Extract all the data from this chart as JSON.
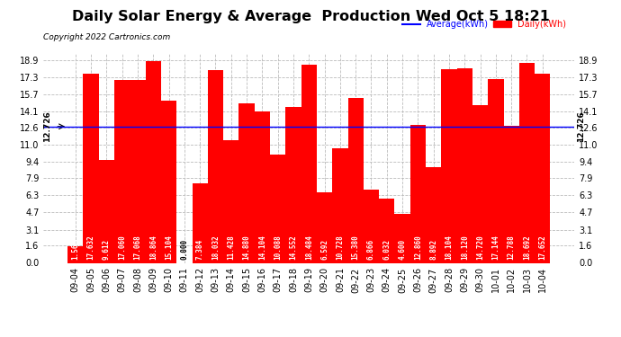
{
  "title": "Daily Solar Energy & Average  Production Wed Oct 5 18:21",
  "copyright": "Copyright 2022 Cartronics.com",
  "legend_average": "Average(kWh)",
  "legend_daily": "Daily(kWh)",
  "average_value": 12.726,
  "average_label": "12.726",
  "categories": [
    "09-04",
    "09-05",
    "09-06",
    "09-07",
    "09-08",
    "09-09",
    "09-10",
    "09-11",
    "09-12",
    "09-13",
    "09-14",
    "09-15",
    "09-16",
    "09-17",
    "09-18",
    "09-19",
    "09-20",
    "09-21",
    "09-22",
    "09-23",
    "09-24",
    "09-25",
    "09-26",
    "09-27",
    "09-28",
    "09-29",
    "09-30",
    "10-01",
    "10-02",
    "10-03",
    "10-04"
  ],
  "values": [
    1.568,
    17.632,
    9.612,
    17.06,
    17.068,
    18.864,
    15.104,
    0.0,
    7.384,
    18.032,
    11.428,
    14.88,
    14.104,
    10.088,
    14.552,
    18.484,
    6.592,
    10.728,
    15.38,
    6.866,
    6.032,
    4.6,
    12.86,
    8.892,
    18.104,
    18.12,
    14.72,
    17.144,
    12.788,
    18.692,
    17.652
  ],
  "bar_color": "#ff0000",
  "average_line_color": "#0000ff",
  "yticks": [
    0.0,
    1.6,
    3.1,
    4.7,
    6.3,
    7.9,
    9.4,
    11.0,
    12.6,
    14.1,
    15.7,
    17.3,
    18.9
  ],
  "ylim": [
    0.0,
    19.5
  ],
  "background_color": "#ffffff",
  "grid_color": "#bbbbbb",
  "title_fontsize": 11.5,
  "bar_value_fontsize": 5.5,
  "tick_fontsize": 7,
  "copyright_fontsize": 6.5
}
